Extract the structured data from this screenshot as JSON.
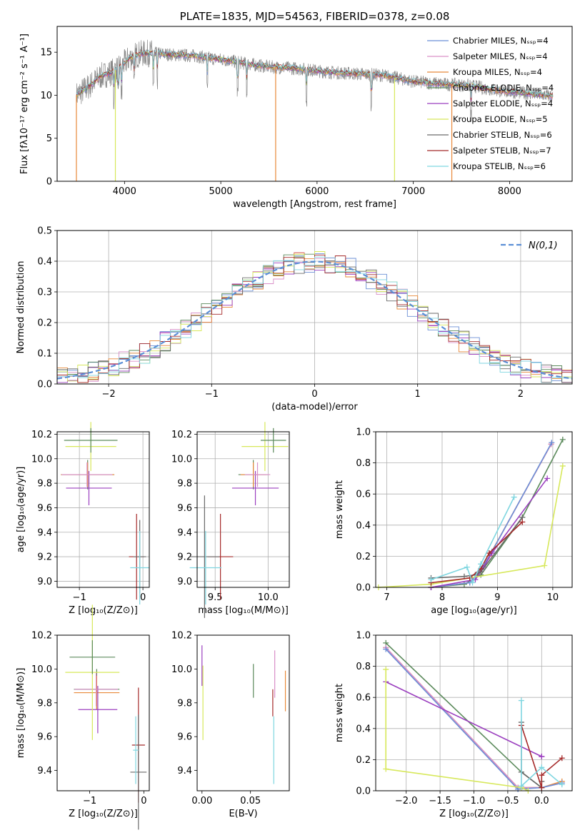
{
  "palette": [
    "#6b8fd6",
    "#d98fc8",
    "#e8893a",
    "#5b8a5b",
    "#9b3fbf",
    "#d7e85a",
    "#6a6a6a",
    "#a52a2a",
    "#7fd6e0"
  ],
  "chart_data": [
    {
      "id": "spectrum",
      "type": "line",
      "title": "PLATE=1835, MJD=54563, FIBERID=0378, z=0.08",
      "xlabel": "wavelength [Angstrom, rest frame]",
      "ylabel": "Flux [fλ10⁻¹⁷ erg cm⁻² s⁻¹ A⁻¹]",
      "xlim": [
        3300,
        8650
      ],
      "ylim": [
        0,
        18
      ],
      "xticks": [
        "4000",
        "5000",
        "6000",
        "7000",
        "8000"
      ],
      "yticks": [
        "0",
        "5",
        "10",
        "15"
      ],
      "continuum": {
        "x": [
          3500,
          3550,
          3650,
          3750,
          3850,
          3950,
          4050,
          4150,
          4300,
          4500,
          4700,
          4900,
          5100,
          5300,
          5500,
          5800,
          6100,
          6400,
          6700,
          7000,
          7300,
          7600,
          7900,
          8200,
          8450
        ],
        "y": [
          10.0,
          10.4,
          11.2,
          12.2,
          12.6,
          13.2,
          14.3,
          14.8,
          14.9,
          14.7,
          14.6,
          14.3,
          14.0,
          13.6,
          13.3,
          13.1,
          12.7,
          12.5,
          12.3,
          11.6,
          11.3,
          11.1,
          10.5,
          10.2,
          9.9
        ]
      },
      "absorption_x": [
        3890,
        3935,
        3970,
        4102,
        4300,
        4340,
        4861,
        5175,
        5270,
        5890,
        6563,
        7600
      ],
      "legend": [
        {
          "name": "Chabrier MILES, Nₛₛₚ=4"
        },
        {
          "name": "Salpeter MILES, Nₛₛₚ=4"
        },
        {
          "name": "Kroupa MILES, Nₛₛₚ=4"
        },
        {
          "name": "Chabrier ELODIE, Nₛₛₚ=4"
        },
        {
          "name": "Salpeter ELODIE, Nₛₛₚ=4"
        },
        {
          "name": "Kroupa ELODIE, Nₛₛₚ=5"
        },
        {
          "name": "Chabrier STELIB, Nₛₛₚ=6"
        },
        {
          "name": "Salpeter STELIB, Nₛₛₚ=7"
        },
        {
          "name": "Kroupa STELIB, Nₛₛₚ=6"
        }
      ]
    },
    {
      "id": "residuals",
      "type": "bar",
      "xlabel": "(data-model)/error",
      "ylabel": "Normed distribution",
      "xlim": [
        -2.5,
        2.5
      ],
      "ylim": [
        0,
        0.5
      ],
      "xticks": [
        "−2",
        "−1",
        "0",
        "1",
        "2"
      ],
      "yticks": [
        "0.0",
        "0.1",
        "0.2",
        "0.3",
        "0.4",
        "0.5"
      ],
      "bins": {
        "start": -2.5,
        "width": 0.1,
        "count": 50
      },
      "legend": "N(0,1)",
      "gaussian": {
        "mean": 0,
        "sigma": 1
      }
    },
    {
      "id": "age-vs-Z",
      "type": "scatter",
      "xlabel": "Z [log₁₀(Z/Z⊙)]",
      "ylabel": "age  [log₁₀(age/yr)]",
      "xlim": [
        -1.35,
        0.1
      ],
      "ylim": [
        8.95,
        10.22
      ],
      "xticks": [
        "−1",
        "0"
      ],
      "yticks": [
        "9.0",
        "9.2",
        "9.4",
        "9.6",
        "9.8",
        "10.0",
        "10.2"
      ],
      "points": [
        {
          "x": -0.87,
          "y": 9.87,
          "xerr": 0.42,
          "yerr": 0.12,
          "c": 3
        },
        {
          "x": -0.87,
          "y": 9.87,
          "xerr": 0.42,
          "yerr": 0.1,
          "c": 2
        },
        {
          "x": -0.85,
          "y": 9.76,
          "xerr": 0.36,
          "yerr": 0.14,
          "c": 4
        },
        {
          "x": -0.88,
          "y": 9.87,
          "xerr": 0.4,
          "yerr": 0.1,
          "c": 1
        },
        {
          "x": -0.82,
          "y": 10.1,
          "xerr": 0.4,
          "yerr": 0.2,
          "c": 5
        },
        {
          "x": -0.82,
          "y": 10.15,
          "xerr": 0.42,
          "yerr": 0.1,
          "c": 3
        },
        {
          "x": -0.1,
          "y": 9.2,
          "xerr": 0.12,
          "yerr": 0.35,
          "c": 7
        },
        {
          "x": -0.05,
          "y": 9.2,
          "xerr": 0.1,
          "yerr": 0.3,
          "c": 6
        },
        {
          "x": -0.05,
          "y": 9.11,
          "xerr": 0.15,
          "yerr": 0.3,
          "c": 8
        }
      ]
    },
    {
      "id": "age-vs-mass",
      "type": "scatter",
      "xlabel": "mass [log₁₀(M/M⊙)]",
      "ylabel": "",
      "xlim": [
        9.33,
        10.2
      ],
      "ylim": [
        8.95,
        10.22
      ],
      "xticks": [
        "9.5",
        "10.0"
      ],
      "yticks": [
        "9.0",
        "9.2",
        "9.4",
        "9.6",
        "9.8",
        "10.0",
        "10.2"
      ],
      "points": [
        {
          "x": 9.86,
          "y": 9.87,
          "xerr": 0.14,
          "yerr": 0.12,
          "c": 3
        },
        {
          "x": 9.86,
          "y": 9.87,
          "xerr": 0.12,
          "yerr": 0.1,
          "c": 2
        },
        {
          "x": 9.88,
          "y": 9.76,
          "xerr": 0.22,
          "yerr": 0.14,
          "c": 4
        },
        {
          "x": 9.9,
          "y": 9.87,
          "xerr": 0.12,
          "yerr": 0.1,
          "c": 1
        },
        {
          "x": 9.97,
          "y": 10.1,
          "xerr": 0.22,
          "yerr": 0.2,
          "c": 5
        },
        {
          "x": 10.05,
          "y": 10.15,
          "xerr": 0.12,
          "yerr": 0.1,
          "c": 3
        },
        {
          "x": 9.55,
          "y": 9.2,
          "xerr": 0.12,
          "yerr": 0.35,
          "c": 7
        },
        {
          "x": 9.4,
          "y": 9.2,
          "xerr": 0.14,
          "yerr": 0.5,
          "c": 6
        },
        {
          "x": 9.41,
          "y": 9.11,
          "xerr": 0.15,
          "yerr": 0.3,
          "c": 8
        }
      ]
    },
    {
      "id": "mass-weight-vs-age",
      "type": "line",
      "xlabel": "age  [log₁₀(age/yr)]",
      "ylabel": "mass weight",
      "xlim": [
        6.8,
        10.35
      ],
      "ylim": [
        0,
        1
      ],
      "xticks": [
        "7",
        "8",
        "9",
        "10"
      ],
      "yticks": [
        "0.0",
        "0.2",
        "0.4",
        "0.6",
        "0.8",
        "1.0"
      ],
      "series": [
        {
          "c": 3,
          "x": [
            7.8,
            8.4,
            8.7,
            9.45,
            10.18
          ],
          "y": [
            0.0,
            0.02,
            0.08,
            0.45,
            0.95
          ]
        },
        {
          "c": 2,
          "x": [
            7.8,
            8.5,
            8.7,
            8.85,
            9.97
          ],
          "y": [
            0.0,
            0.03,
            0.1,
            0.2,
            0.92
          ]
        },
        {
          "c": 1,
          "x": [
            7.8,
            8.5,
            8.72,
            8.9,
            9.97
          ],
          "y": [
            0.0,
            0.03,
            0.12,
            0.23,
            0.92
          ]
        },
        {
          "c": 0,
          "x": [
            7.8,
            8.5,
            8.72,
            8.9,
            9.98
          ],
          "y": [
            0.0,
            0.03,
            0.12,
            0.23,
            0.93
          ]
        },
        {
          "c": 4,
          "x": [
            7.8,
            8.6,
            8.75,
            8.9,
            9.9
          ],
          "y": [
            0.0,
            0.05,
            0.13,
            0.22,
            0.7
          ]
        },
        {
          "c": 5,
          "x": [
            6.85,
            7.8,
            9.85,
            10.18
          ],
          "y": [
            0.0,
            0.02,
            0.14,
            0.78
          ]
        },
        {
          "c": 6,
          "x": [
            7.8,
            8.4,
            8.6,
            8.7,
            9.45
          ],
          "y": [
            0.06,
            0.07,
            0.08,
            0.1,
            0.45
          ]
        },
        {
          "c": 7,
          "x": [
            7.8,
            8.5,
            8.7,
            8.85,
            9.45
          ],
          "y": [
            0.03,
            0.06,
            0.12,
            0.22,
            0.42
          ]
        },
        {
          "c": 8,
          "x": [
            7.8,
            8.45,
            8.55,
            8.7,
            9.3
          ],
          "y": [
            0.05,
            0.13,
            0.03,
            0.15,
            0.58
          ]
        }
      ]
    },
    {
      "id": "mass-vs-Z",
      "type": "scatter",
      "xlabel": "Z [log₁₀(Z/Z⊙)]",
      "ylabel": "mass [log₁₀(M/M⊙)]",
      "xlim": [
        -1.6,
        0.1
      ],
      "ylim": [
        9.28,
        10.2
      ],
      "xticks": [
        "−1",
        "0"
      ],
      "yticks": [
        "9.4",
        "9.6",
        "9.8",
        "10.0",
        "10.2"
      ],
      "points": [
        {
          "x": -0.87,
          "y": 9.88,
          "xerr": 0.42,
          "yerr": 0.12,
          "c": 3
        },
        {
          "x": -0.87,
          "y": 9.86,
          "xerr": 0.42,
          "yerr": 0.1,
          "c": 2
        },
        {
          "x": -0.85,
          "y": 9.76,
          "xerr": 0.36,
          "yerr": 0.14,
          "c": 4
        },
        {
          "x": -0.88,
          "y": 9.88,
          "xerr": 0.4,
          "yerr": 0.1,
          "c": 1
        },
        {
          "x": -0.95,
          "y": 9.98,
          "xerr": 0.5,
          "yerr": 0.4,
          "c": 5
        },
        {
          "x": -0.95,
          "y": 10.07,
          "xerr": 0.42,
          "yerr": 0.1,
          "c": 3
        },
        {
          "x": -0.1,
          "y": 9.55,
          "xerr": 0.12,
          "yerr": 0.34,
          "c": 7
        },
        {
          "x": -0.1,
          "y": 9.39,
          "xerr": 0.15,
          "yerr": 0.34,
          "c": 6
        },
        {
          "x": -0.15,
          "y": 9.52,
          "xerr": 0.05,
          "yerr": 0.2,
          "c": 8
        }
      ]
    },
    {
      "id": "mass-vs-EBV",
      "type": "scatter",
      "xlabel": "E(B-V)",
      "ylabel": "",
      "xlim": [
        -0.005,
        0.09
      ],
      "ylim": [
        9.28,
        10.2
      ],
      "xticks": [
        "0.00",
        "0.05"
      ],
      "yticks": [
        "9.4",
        "9.6",
        "9.8",
        "10.0",
        "10.2"
      ],
      "points": [
        {
          "x": 0.0,
          "y": 10.02,
          "xerr": 0,
          "yerr": 0.12,
          "c": 4
        },
        {
          "x": 0.001,
          "y": 9.8,
          "xerr": 0,
          "yerr": 0.22,
          "c": 5
        },
        {
          "x": 0.053,
          "y": 9.93,
          "xerr": 0,
          "yerr": 0.1,
          "c": 3
        },
        {
          "x": 0.075,
          "y": 9.97,
          "xerr": 0,
          "yerr": 0.14,
          "c": 1
        },
        {
          "x": 0.073,
          "y": 9.8,
          "xerr": 0,
          "yerr": 0.08,
          "c": 7
        },
        {
          "x": 0.086,
          "y": 9.87,
          "xerr": 0,
          "yerr": 0.12,
          "c": 2
        },
        {
          "x": 0.074,
          "y": 9.52,
          "xerr": 0,
          "yerr": 0.2,
          "c": 8
        }
      ]
    },
    {
      "id": "mass-weight-vs-Z",
      "type": "line",
      "xlabel": "Z [log₁₀(Z/Z⊙)]",
      "ylabel": "mass weight",
      "xlim": [
        -2.45,
        0.45
      ],
      "ylim": [
        0,
        1
      ],
      "xticks": [
        "−2.0",
        "−1.5",
        "−1.0",
        "−0.5",
        "0.0"
      ],
      "yticks": [
        "0.0",
        "0.2",
        "0.4",
        "0.6",
        "0.8",
        "1.0"
      ],
      "series": [
        {
          "c": 3,
          "x": [
            -2.3,
            -0.3,
            0.0
          ],
          "y": [
            0.95,
            0.12,
            0.02
          ]
        },
        {
          "c": 2,
          "x": [
            -2.3,
            -0.35,
            0.0,
            0.3
          ],
          "y": [
            0.92,
            0.02,
            0.02,
            0.06
          ]
        },
        {
          "c": 1,
          "x": [
            -2.3,
            -0.35,
            0.0,
            0.3
          ],
          "y": [
            0.92,
            0.02,
            0.02,
            0.05
          ]
        },
        {
          "c": 0,
          "x": [
            -2.3,
            -0.35,
            0.0,
            0.3
          ],
          "y": [
            0.91,
            0.01,
            0.02,
            0.05
          ]
        },
        {
          "c": 4,
          "x": [
            -2.3,
            0.0,
            0.0
          ],
          "y": [
            0.7,
            0.22,
            0.22
          ]
        },
        {
          "c": 5,
          "x": [
            -2.3,
            -2.3,
            -0.3,
            -0.2
          ],
          "y": [
            0.78,
            0.14,
            0.02,
            0.0
          ]
        },
        {
          "c": 6,
          "x": [
            -0.3,
            -0.3,
            0.0,
            0.0
          ],
          "y": [
            0.44,
            0.12,
            0.02,
            0.06
          ]
        },
        {
          "c": 7,
          "x": [
            -0.3,
            0.0,
            0.0,
            0.3
          ],
          "y": [
            0.42,
            0.02,
            0.1,
            0.21
          ]
        },
        {
          "c": 8,
          "x": [
            -0.3,
            -0.3,
            0.0,
            0.3
          ],
          "y": [
            0.58,
            0.03,
            0.15,
            0.04
          ]
        }
      ]
    }
  ]
}
